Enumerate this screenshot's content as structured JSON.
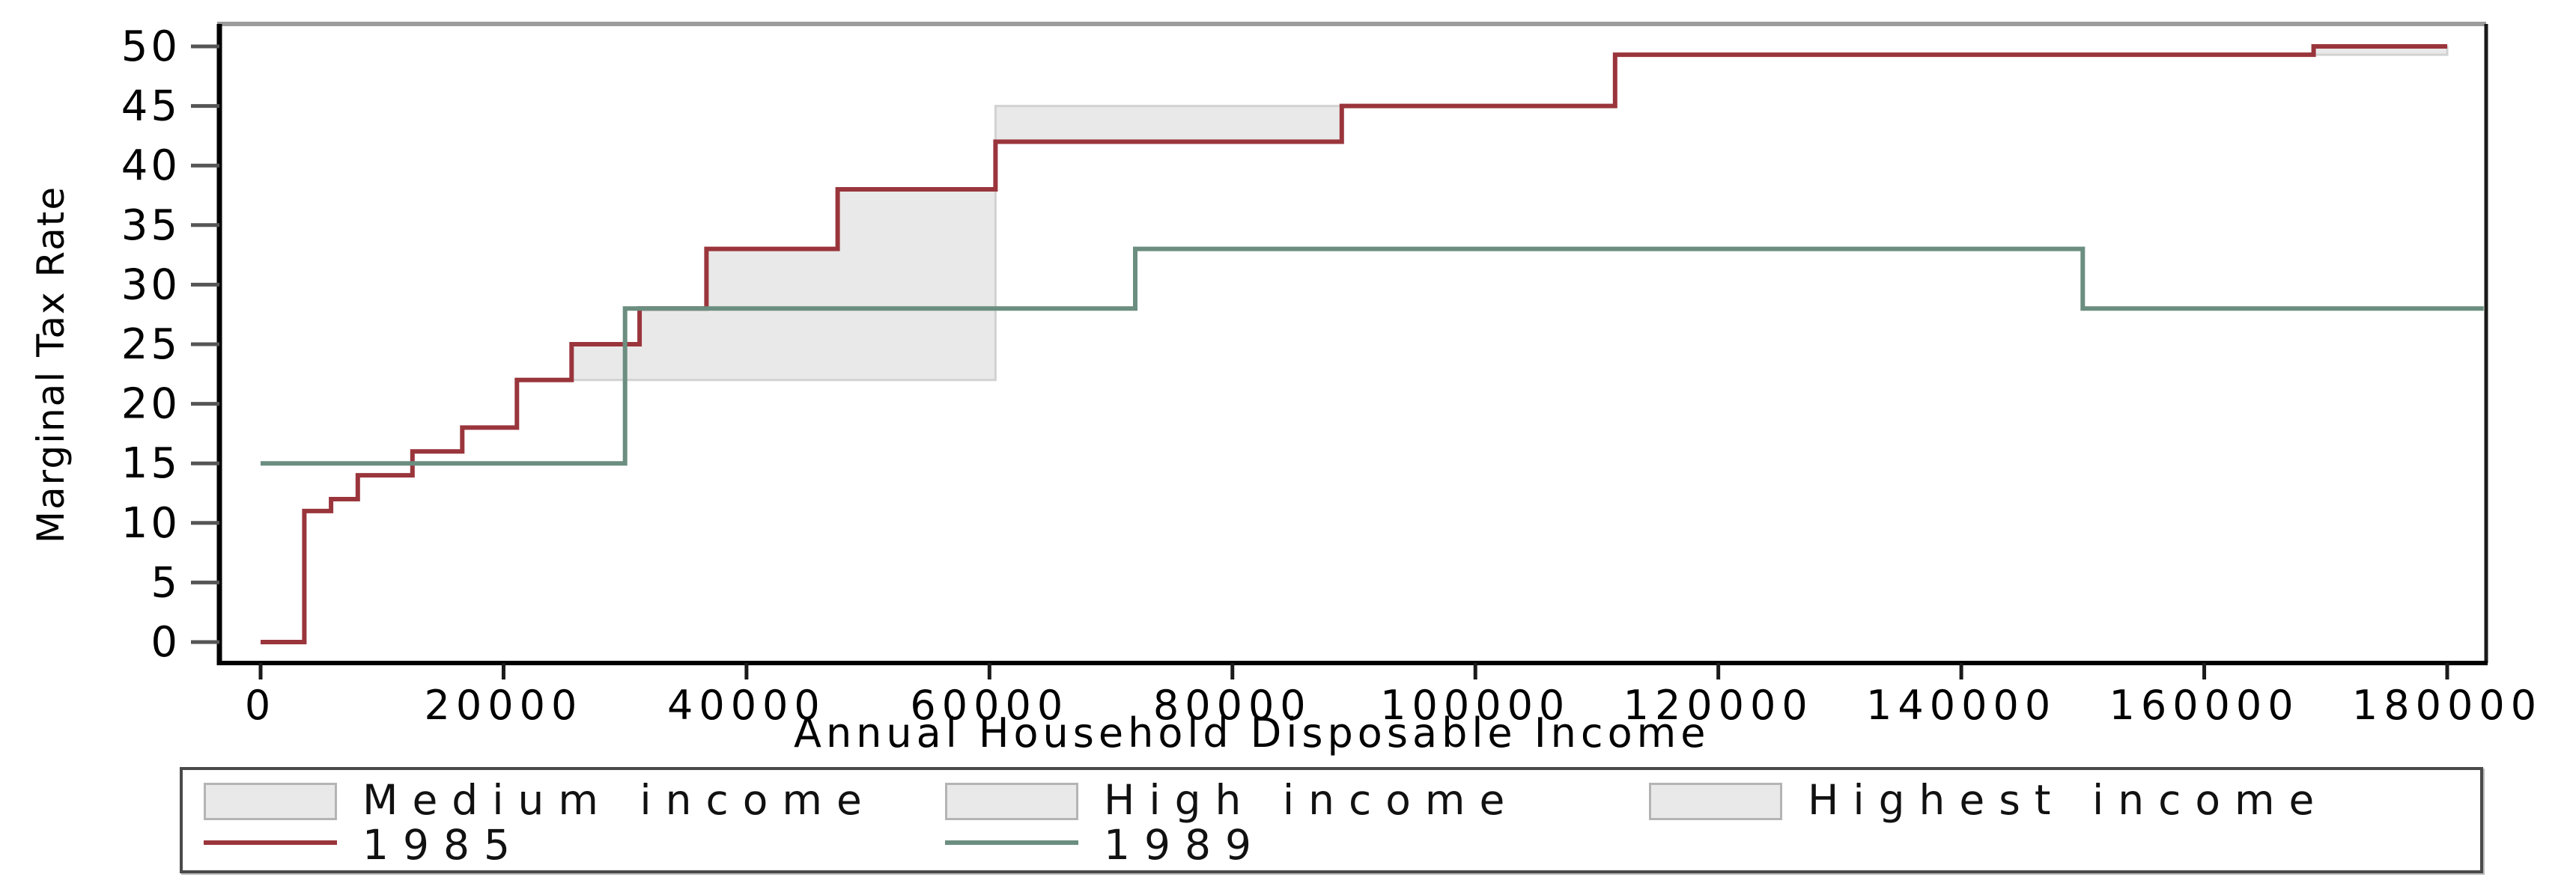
{
  "chart_data": {
    "type": "line",
    "subtype": "step",
    "title": "",
    "xlabel": "Annual Household Disposable Income",
    "ylabel": "Marginal Tax Rate",
    "x_ticks": [
      0,
      20000,
      40000,
      60000,
      80000,
      100000,
      120000,
      140000,
      160000,
      180000
    ],
    "y_ticks": [
      0,
      5,
      10,
      15,
      20,
      25,
      30,
      35,
      40,
      45,
      50
    ],
    "xlim": [
      -3400,
      183500
    ],
    "ylim": [
      0,
      50
    ],
    "grid": false,
    "legend_position": "bottom",
    "series": [
      {
        "name": "1985",
        "color": "#9a353c",
        "points": [
          [
            0,
            0
          ],
          [
            3600,
            0
          ],
          [
            3600,
            11
          ],
          [
            5800,
            11
          ],
          [
            5800,
            12
          ],
          [
            8000,
            12
          ],
          [
            8000,
            14
          ],
          [
            12500,
            14
          ],
          [
            12500,
            16
          ],
          [
            16600,
            16
          ],
          [
            16600,
            18
          ],
          [
            21100,
            18
          ],
          [
            21100,
            22
          ],
          [
            25600,
            22
          ],
          [
            25600,
            25
          ],
          [
            31200,
            25
          ],
          [
            31200,
            28
          ],
          [
            36700,
            28
          ],
          [
            36700,
            33
          ],
          [
            47500,
            33
          ],
          [
            47500,
            38
          ],
          [
            60500,
            38
          ],
          [
            60500,
            42
          ],
          [
            89000,
            42
          ],
          [
            89000,
            45
          ],
          [
            111500,
            45
          ],
          [
            111500,
            49.3
          ],
          [
            169000,
            49.3
          ],
          [
            169000,
            50
          ],
          [
            180000,
            50
          ]
        ]
      },
      {
        "name": "1989",
        "color": "#6b8e80",
        "points": [
          [
            0,
            15
          ],
          [
            30000,
            15
          ],
          [
            30000,
            28
          ],
          [
            72000,
            28
          ],
          [
            72000,
            33
          ],
          [
            150000,
            33
          ],
          [
            150000,
            28
          ],
          [
            183000,
            28
          ]
        ]
      }
    ],
    "bands": [
      {
        "name": "Medium income",
        "fill": "#e9e9e9",
        "edge": "#d2d2d2",
        "polygon": [
          [
            25600,
            22
          ],
          [
            60500,
            22
          ],
          [
            60500,
            38
          ],
          [
            47500,
            38
          ],
          [
            47500,
            33
          ],
          [
            36700,
            33
          ],
          [
            36700,
            28
          ],
          [
            31200,
            28
          ],
          [
            31200,
            25
          ],
          [
            25600,
            25
          ]
        ]
      },
      {
        "name": "High income",
        "fill": "#e9e9e9",
        "edge": "#d2d2d2",
        "polygon": [
          [
            60500,
            42
          ],
          [
            89000,
            42
          ],
          [
            89000,
            45
          ],
          [
            60500,
            45
          ]
        ]
      },
      {
        "name": "Highest income",
        "fill": "#e9e9e9",
        "edge": "#d2d2d2",
        "polygon": [
          [
            169000,
            49.3
          ],
          [
            180000,
            49.3
          ],
          [
            180000,
            50
          ],
          [
            169000,
            50
          ]
        ]
      }
    ],
    "legend": {
      "columns": [
        {
          "area_label": "Medium income",
          "line_label": "1985",
          "line_color": "#9a353c"
        },
        {
          "area_label": "High income",
          "line_label": "1989",
          "line_color": "#6b8e80"
        },
        {
          "area_label": "Highest income",
          "line_label": null,
          "line_color": null
        }
      ],
      "swatch_fill": "#e9e9e9"
    }
  }
}
